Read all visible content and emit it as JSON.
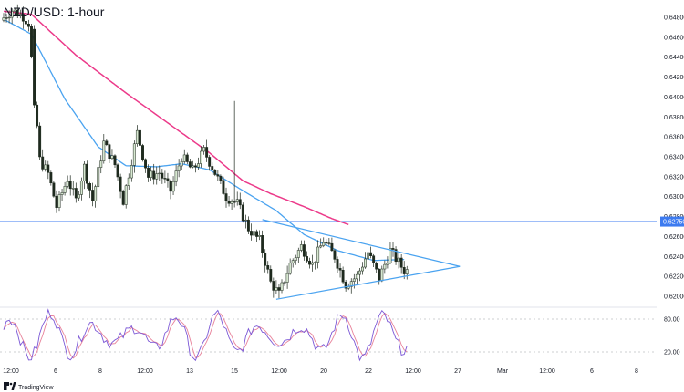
{
  "chart_title": "NZD/USD: 1-hour",
  "brand": {
    "text": "TradingView",
    "icon": "tradingview-logo-icon"
  },
  "colors": {
    "bull_body": "#d7e8d1",
    "bear_body": "#1e2a1e",
    "wick": "#1e2a1e",
    "ma_fast": "#4aa3f0",
    "ma_slow": "#ec3a8a",
    "support_line": "#3d7bf0",
    "triangle": "#4aa3f0",
    "stoch_k": "#7b57d6",
    "stoch_d": "#e8829a",
    "price_tag_bg": "#3d7bf0",
    "price_tag_text": "#ffffff",
    "grid": "#9aa0a6"
  },
  "chart_data": {
    "type": "candlestick",
    "symbol": "NZD/USD",
    "interval": "1-hour",
    "y_axis": {
      "ticks": [
        "0.64800",
        "0.64600",
        "0.64400",
        "0.64200",
        "0.64000",
        "0.63800",
        "0.63600",
        "0.63400",
        "0.63200",
        "0.63000",
        "0.62800",
        "0.62600",
        "0.62400",
        "0.62200",
        "0.62000"
      ],
      "range": [
        0.619,
        0.649
      ]
    },
    "x_axis": {
      "ticks": [
        "12:00",
        "6",
        "8",
        "12:00",
        "13",
        "15",
        "12:00",
        "20",
        "22",
        "12:00",
        "27",
        "Mar",
        "12:00",
        "6",
        "8"
      ]
    },
    "price_anchors": [
      {
        "t": 0,
        "p": 0.6477
      },
      {
        "t": 4,
        "p": 0.6487
      },
      {
        "t": 8,
        "p": 0.6481
      },
      {
        "t": 10,
        "p": 0.6474
      },
      {
        "t": 12,
        "p": 0.6404
      },
      {
        "t": 14,
        "p": 0.6337
      },
      {
        "t": 17,
        "p": 0.6323
      },
      {
        "t": 20,
        "p": 0.629
      },
      {
        "t": 24,
        "p": 0.6318
      },
      {
        "t": 27,
        "p": 0.6296
      },
      {
        "t": 30,
        "p": 0.633
      },
      {
        "t": 33,
        "p": 0.6296
      },
      {
        "t": 37,
        "p": 0.6354
      },
      {
        "t": 41,
        "p": 0.6332
      },
      {
        "t": 44,
        "p": 0.6296
      },
      {
        "t": 49,
        "p": 0.6364
      },
      {
        "t": 53,
        "p": 0.632
      },
      {
        "t": 57,
        "p": 0.6324
      },
      {
        "t": 61,
        "p": 0.6306
      },
      {
        "t": 65,
        "p": 0.634
      },
      {
        "t": 69,
        "p": 0.6326
      },
      {
        "t": 73,
        "p": 0.6346
      },
      {
        "t": 77,
        "p": 0.6324
      },
      {
        "t": 81,
        "p": 0.63
      },
      {
        "t": 85,
        "p": 0.6293
      },
      {
        "t": 89,
        "p": 0.6268
      },
      {
        "t": 93,
        "p": 0.6256
      },
      {
        "t": 97,
        "p": 0.6214
      },
      {
        "t": 100,
        "p": 0.6202
      },
      {
        "t": 104,
        "p": 0.6232
      },
      {
        "t": 108,
        "p": 0.625
      },
      {
        "t": 112,
        "p": 0.6232
      },
      {
        "t": 116,
        "p": 0.6256
      },
      {
        "t": 120,
        "p": 0.624
      },
      {
        "t": 124,
        "p": 0.6212
      },
      {
        "t": 128,
        "p": 0.622
      },
      {
        "t": 132,
        "p": 0.6244
      },
      {
        "t": 136,
        "p": 0.6218
      },
      {
        "t": 140,
        "p": 0.6246
      },
      {
        "t": 143,
        "p": 0.6234
      },
      {
        "t": 145,
        "p": 0.6226
      }
    ],
    "ma_fast_anchors": [
      {
        "t": 0,
        "p": 0.6478
      },
      {
        "t": 10,
        "p": 0.6463
      },
      {
        "t": 22,
        "p": 0.6398
      },
      {
        "t": 34,
        "p": 0.635
      },
      {
        "t": 44,
        "p": 0.6331
      },
      {
        "t": 55,
        "p": 0.633
      },
      {
        "t": 64,
        "p": 0.6333
      },
      {
        "t": 74,
        "p": 0.6327
      },
      {
        "t": 86,
        "p": 0.6306
      },
      {
        "t": 98,
        "p": 0.6286
      },
      {
        "t": 108,
        "p": 0.6262
      },
      {
        "t": 120,
        "p": 0.6246
      },
      {
        "t": 133,
        "p": 0.6236
      },
      {
        "t": 144,
        "p": 0.6237
      }
    ],
    "ma_slow_anchors": [
      {
        "t": 0,
        "p": 0.6486
      },
      {
        "t": 10,
        "p": 0.6483
      },
      {
        "t": 26,
        "p": 0.6442
      },
      {
        "t": 44,
        "p": 0.6404
      },
      {
        "t": 60,
        "p": 0.6372
      },
      {
        "t": 74,
        "p": 0.6344
      },
      {
        "t": 86,
        "p": 0.6316
      },
      {
        "t": 96,
        "p": 0.6303
      },
      {
        "t": 108,
        "p": 0.629
      },
      {
        "t": 118,
        "p": 0.6278
      },
      {
        "t": 124,
        "p": 0.6272
      }
    ],
    "support_level": 0.6275,
    "support_label": "0.62750",
    "triangle": {
      "apex": {
        "t": 164,
        "p": 0.623
      },
      "upper_start": {
        "t": 93,
        "p": 0.6277
      },
      "lower_start": {
        "t": 98,
        "p": 0.6197
      }
    },
    "candle_count": 146,
    "stochastic": {
      "levels": [
        80,
        20
      ],
      "level_labels": [
        "80.00",
        "20.00"
      ],
      "range": [
        0,
        100
      ]
    }
  }
}
